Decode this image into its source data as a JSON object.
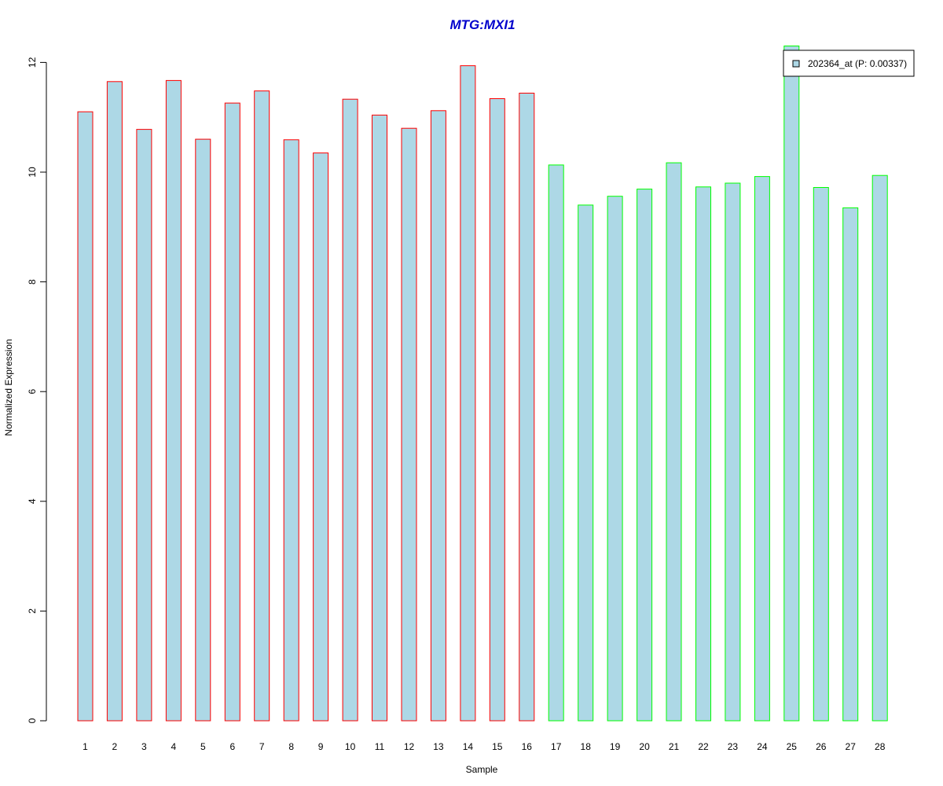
{
  "chart_data": {
    "type": "bar",
    "title": "MTG:MXI1",
    "xlabel": "Sample",
    "ylabel": "Normalized Expression",
    "ylim": [
      0,
      12
    ],
    "yticks": [
      0,
      2,
      4,
      6,
      8,
      10,
      12
    ],
    "categories": [
      "1",
      "2",
      "3",
      "4",
      "5",
      "6",
      "7",
      "8",
      "9",
      "10",
      "11",
      "12",
      "13",
      "14",
      "15",
      "16",
      "17",
      "18",
      "19",
      "20",
      "21",
      "22",
      "23",
      "24",
      "25",
      "26",
      "27",
      "28"
    ],
    "values": [
      11.1,
      11.65,
      10.78,
      11.67,
      10.6,
      11.26,
      11.48,
      10.59,
      10.35,
      11.33,
      11.04,
      10.8,
      11.12,
      11.94,
      11.34,
      11.44,
      10.13,
      9.4,
      9.56,
      9.69,
      10.17,
      9.73,
      9.8,
      9.92,
      12.3,
      9.72,
      9.35,
      9.94
    ],
    "bar_fill": "#add8e6",
    "group_outline_colors": [
      "#ff0000",
      "#ff0000",
      "#ff0000",
      "#ff0000",
      "#ff0000",
      "#ff0000",
      "#ff0000",
      "#ff0000",
      "#ff0000",
      "#ff0000",
      "#ff0000",
      "#ff0000",
      "#ff0000",
      "#ff0000",
      "#ff0000",
      "#ff0000",
      "#00ff00",
      "#00ff00",
      "#00ff00",
      "#00ff00",
      "#00ff00",
      "#00ff00",
      "#00ff00",
      "#00ff00",
      "#00ff00",
      "#00ff00",
      "#00ff00",
      "#00ff00"
    ],
    "title_color": "#0000cc",
    "legend": {
      "label": "202364_at (P: 0.00337)",
      "placement": "top-right",
      "swatch_color": "#add8e6"
    },
    "grid": false
  }
}
